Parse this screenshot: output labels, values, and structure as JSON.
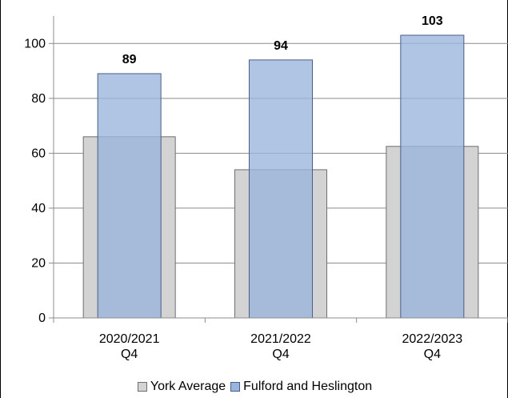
{
  "chart_data": {
    "type": "bar",
    "categories": [
      [
        "2020/2021",
        "Q4"
      ],
      [
        "2021/2022",
        "Q4"
      ],
      [
        "2022/2023",
        "Q4"
      ]
    ],
    "series": [
      {
        "name": "York Average",
        "values": [
          66,
          54,
          62.5
        ],
        "color": "#d3d3d3",
        "stroke": "#6e6e6e"
      },
      {
        "name": "Fulford and Heslington",
        "values": [
          89,
          94,
          103
        ],
        "color": "#9ab5dc",
        "stroke": "#4a5e85"
      }
    ],
    "data_labels": [
      "89",
      "94",
      "103"
    ],
    "yticks": [
      0,
      20,
      40,
      60,
      80,
      100
    ],
    "ylim": [
      0,
      110
    ],
    "grid": true,
    "legend_position": "bottom",
    "overlapping_bars": true
  }
}
